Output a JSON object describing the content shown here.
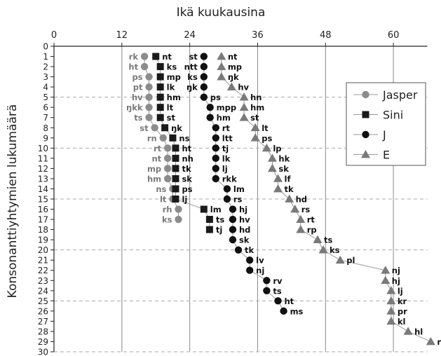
{
  "chart_data": {
    "type": "scatter",
    "title": "",
    "xlabel": "Ikä kuukausina",
    "ylabel": "Konsonanttiyhtymien lukumäärä",
    "x_axis_position": "top",
    "xlim": [
      0,
      66
    ],
    "ylim": [
      0,
      30
    ],
    "y_inverted": true,
    "xticks": [
      0,
      12,
      24,
      36,
      48,
      60
    ],
    "yticks": [
      0,
      1,
      2,
      3,
      4,
      5,
      6,
      7,
      8,
      9,
      10,
      11,
      12,
      13,
      14,
      15,
      16,
      17,
      18,
      19,
      20,
      21,
      22,
      23,
      24,
      25,
      26,
      27,
      28,
      29,
      30
    ],
    "grid": {
      "vertical": "solid",
      "horizontal_every": 5,
      "horizontal": "dashed"
    },
    "legend_position": "right",
    "series": [
      {
        "name": "Jasper",
        "marker": "circle",
        "color": "#8c8c8c",
        "label_color": "#7a7a7a",
        "label_side": "left",
        "points": [
          {
            "x": 16,
            "y": 1,
            "label": "rk"
          },
          {
            "x": 16,
            "y": 2,
            "label": "ht"
          },
          {
            "x": 16.8,
            "y": 3,
            "label": "ps"
          },
          {
            "x": 16.8,
            "y": 4,
            "label": "pt"
          },
          {
            "x": 16.8,
            "y": 5,
            "label": "hv"
          },
          {
            "x": 16.8,
            "y": 6,
            "label": "ŋkk"
          },
          {
            "x": 16.8,
            "y": 7,
            "label": "ts"
          },
          {
            "x": 17.8,
            "y": 8,
            "label": "st"
          },
          {
            "x": 19.3,
            "y": 9,
            "label": "rn"
          },
          {
            "x": 20.1,
            "y": 10,
            "label": "rt"
          },
          {
            "x": 20.1,
            "y": 11,
            "label": "nt"
          },
          {
            "x": 20.1,
            "y": 12,
            "label": "mp"
          },
          {
            "x": 20.1,
            "y": 13,
            "label": "hm"
          },
          {
            "x": 21,
            "y": 14,
            "label": "ns"
          },
          {
            "x": 21,
            "y": 15,
            "label": "lt"
          },
          {
            "x": 22,
            "y": 16,
            "label": "rh"
          },
          {
            "x": 22,
            "y": 17,
            "label": "ks"
          }
        ]
      },
      {
        "name": "Sini",
        "marker": "square",
        "color": "#1a1a1a",
        "label_color": "#111",
        "label_side": "right",
        "points": [
          {
            "x": 18,
            "y": 1,
            "label": "nt"
          },
          {
            "x": 18.8,
            "y": 2,
            "label": "ks"
          },
          {
            "x": 18.8,
            "y": 3,
            "label": "mp"
          },
          {
            "x": 18.8,
            "y": 4,
            "label": "lk"
          },
          {
            "x": 18.8,
            "y": 5,
            "label": "hm"
          },
          {
            "x": 18.8,
            "y": 6,
            "label": "lt"
          },
          {
            "x": 18.8,
            "y": 7,
            "label": "st"
          },
          {
            "x": 19.6,
            "y": 8,
            "label": "ŋk"
          },
          {
            "x": 21,
            "y": 9,
            "label": "ns"
          },
          {
            "x": 21.5,
            "y": 10,
            "label": "ht"
          },
          {
            "x": 21.5,
            "y": 11,
            "label": "nh"
          },
          {
            "x": 21.5,
            "y": 12,
            "label": "tk"
          },
          {
            "x": 21.5,
            "y": 13,
            "label": "sk"
          },
          {
            "x": 21.5,
            "y": 14,
            "label": "ps"
          },
          {
            "x": 21.5,
            "y": 15,
            "label": "lj"
          },
          {
            "x": 26.5,
            "y": 16,
            "label": "lm"
          },
          {
            "x": 27.5,
            "y": 17,
            "label": "ts"
          },
          {
            "x": 27.5,
            "y": 18,
            "label": "tj"
          }
        ]
      },
      {
        "name": "J",
        "marker": "circle",
        "color": "#111111",
        "label_color": "#111",
        "label_side": "right",
        "points": [
          {
            "x": 26.5,
            "y": 1,
            "label": "st",
            "label_side": "left"
          },
          {
            "x": 26.5,
            "y": 2,
            "label": "ntt",
            "label_side": "left"
          },
          {
            "x": 26.5,
            "y": 3,
            "label": "ks",
            "label_side": "left"
          },
          {
            "x": 26.5,
            "y": 4,
            "label": "ŋk",
            "label_side": "left"
          },
          {
            "x": 26.5,
            "y": 5,
            "label": "ps"
          },
          {
            "x": 27.6,
            "y": 6,
            "label": "mpp"
          },
          {
            "x": 27.6,
            "y": 7,
            "label": "hm"
          },
          {
            "x": 28.6,
            "y": 8,
            "label": "rt"
          },
          {
            "x": 28.6,
            "y": 9,
            "label": "ltt"
          },
          {
            "x": 28.6,
            "y": 10,
            "label": "tj"
          },
          {
            "x": 28.6,
            "y": 11,
            "label": "lk"
          },
          {
            "x": 28.6,
            "y": 12,
            "label": "lj"
          },
          {
            "x": 28.6,
            "y": 13,
            "label": "rkk"
          },
          {
            "x": 30.6,
            "y": 14,
            "label": "lm"
          },
          {
            "x": 30.6,
            "y": 15,
            "label": "rs"
          },
          {
            "x": 31.6,
            "y": 16,
            "label": "hj"
          },
          {
            "x": 31.6,
            "y": 17,
            "label": "hv"
          },
          {
            "x": 31.6,
            "y": 18,
            "label": "hd"
          },
          {
            "x": 31.6,
            "y": 19,
            "label": "sk"
          },
          {
            "x": 32.6,
            "y": 20,
            "label": "tk"
          },
          {
            "x": 34.6,
            "y": 21,
            "label": "lv"
          },
          {
            "x": 34.6,
            "y": 22,
            "label": "nj"
          },
          {
            "x": 37.6,
            "y": 23,
            "label": "rv"
          },
          {
            "x": 37.6,
            "y": 24,
            "label": "ts"
          },
          {
            "x": 39.6,
            "y": 25,
            "label": "ht"
          },
          {
            "x": 40.6,
            "y": 26,
            "label": "ms"
          }
        ]
      },
      {
        "name": "E",
        "marker": "triangle",
        "color": "#7a7a7a",
        "label_color": "#111",
        "label_side": "right",
        "points": [
          {
            "x": 29.6,
            "y": 1,
            "label": "nt"
          },
          {
            "x": 29.6,
            "y": 2,
            "label": "mp"
          },
          {
            "x": 29.6,
            "y": 3,
            "label": "ŋk"
          },
          {
            "x": 31.4,
            "y": 4,
            "label": "hv"
          },
          {
            "x": 33.6,
            "y": 5,
            "label": "hn"
          },
          {
            "x": 33.6,
            "y": 6,
            "label": "hm"
          },
          {
            "x": 33.6,
            "y": 7,
            "label": "st"
          },
          {
            "x": 35.6,
            "y": 8,
            "label": "lt"
          },
          {
            "x": 35.6,
            "y": 9,
            "label": "ps"
          },
          {
            "x": 37.6,
            "y": 10,
            "label": "lp"
          },
          {
            "x": 38.6,
            "y": 11,
            "label": "hk"
          },
          {
            "x": 38.6,
            "y": 12,
            "label": "sk"
          },
          {
            "x": 39.6,
            "y": 13,
            "label": "lf"
          },
          {
            "x": 39.6,
            "y": 14,
            "label": "tk"
          },
          {
            "x": 41.6,
            "y": 15,
            "label": "hd"
          },
          {
            "x": 42.6,
            "y": 16,
            "label": "rs"
          },
          {
            "x": 43.6,
            "y": 17,
            "label": "rt"
          },
          {
            "x": 43.6,
            "y": 18,
            "label": "rp"
          },
          {
            "x": 46.6,
            "y": 19,
            "label": "ts"
          },
          {
            "x": 47.6,
            "y": 20,
            "label": "ks"
          },
          {
            "x": 50.6,
            "y": 21,
            "label": "pl"
          },
          {
            "x": 58.6,
            "y": 22,
            "label": "nj"
          },
          {
            "x": 58.6,
            "y": 23,
            "label": "hj"
          },
          {
            "x": 59.6,
            "y": 24,
            "label": "lj"
          },
          {
            "x": 59.6,
            "y": 25,
            "label": "kr"
          },
          {
            "x": 59.6,
            "y": 26,
            "label": "pr"
          },
          {
            "x": 59.6,
            "y": 27,
            "label": "kl"
          },
          {
            "x": 62.6,
            "y": 28,
            "label": "hl"
          },
          {
            "x": 66.6,
            "y": 29,
            "label": "rv"
          }
        ]
      }
    ]
  }
}
